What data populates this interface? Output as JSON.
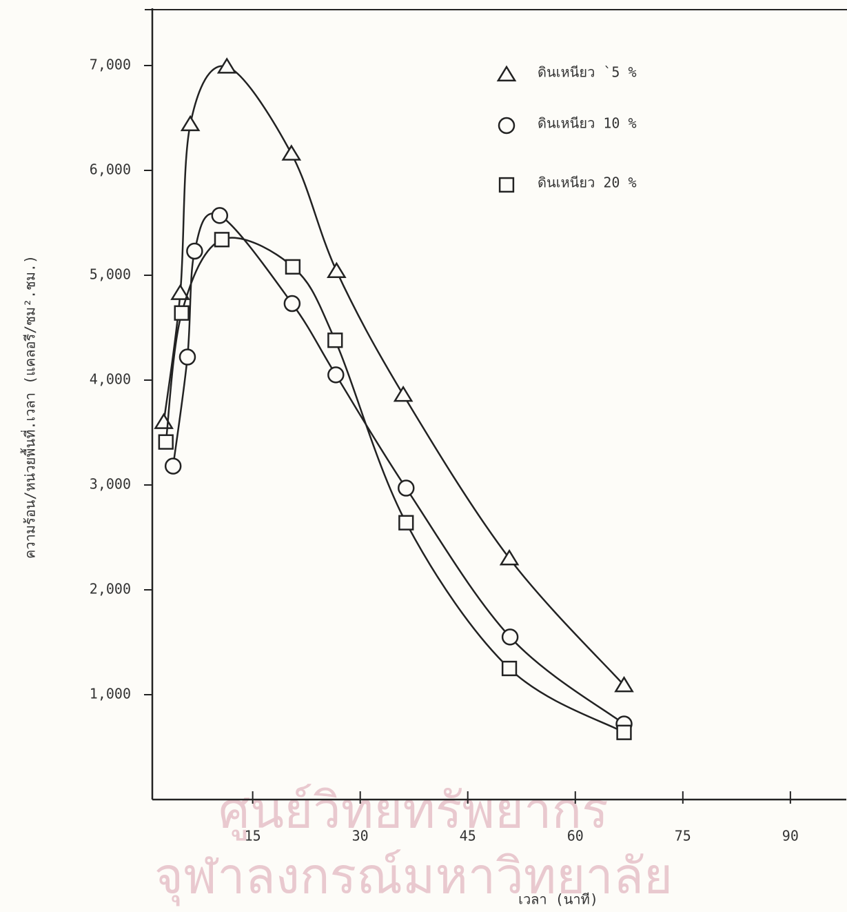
{
  "chart_data": {
    "type": "scatter",
    "x_label": "เวลา (นาที)",
    "y_label": "ความร้อน/หน่วยพื้นที่.เวลา  (แคลอรี/ซม².ชม.)",
    "xlim": [
      1,
      97.8
    ],
    "ylim": [
      0,
      7500
    ],
    "xticks": [
      15,
      30,
      45,
      60,
      75,
      90
    ],
    "yticks": [
      {
        "value": 1000,
        "label": "1,000"
      },
      {
        "value": 2000,
        "label": "2,000"
      },
      {
        "value": 3000,
        "label": "3,000"
      },
      {
        "value": 4000,
        "label": "4,000"
      },
      {
        "value": 5000,
        "label": "5,000"
      },
      {
        "value": 6000,
        "label": "6,000"
      },
      {
        "value": 7000,
        "label": "7,000"
      }
    ],
    "smooth_curves": true,
    "series": [
      {
        "name": "ดินเหนียว `5 %",
        "marker": "triangle",
        "color": "#222222",
        "x": [
          2.6,
          4.9,
          6.3,
          11.4,
          20.4,
          26.7,
          36.0,
          50.8,
          66.8
        ],
        "values": [
          3600,
          4830,
          6440,
          6990,
          6160,
          5040,
          3860,
          2300,
          1090
        ]
      },
      {
        "name": "ดินเหนียว 10 %",
        "marker": "circle",
        "color": "#222222",
        "x": [
          3.9,
          5.9,
          6.9,
          10.4,
          20.5,
          26.6,
          36.4,
          50.9,
          66.8
        ],
        "values": [
          3180,
          4220,
          5230,
          5570,
          4730,
          4050,
          2970,
          1550,
          720
        ]
      },
      {
        "name": "ดินเหนียว 20 %",
        "marker": "square",
        "color": "#222222",
        "x": [
          2.9,
          5.1,
          10.7,
          20.6,
          26.5,
          36.4,
          50.8,
          66.8
        ],
        "values": [
          3410,
          4640,
          5340,
          5080,
          4380,
          2640,
          1250,
          640
        ]
      }
    ]
  },
  "watermark": [
    "ศูนย์วิทยทรัพยากร",
    "จุฬาลงกรณ์มหาวิทยาลัย"
  ]
}
